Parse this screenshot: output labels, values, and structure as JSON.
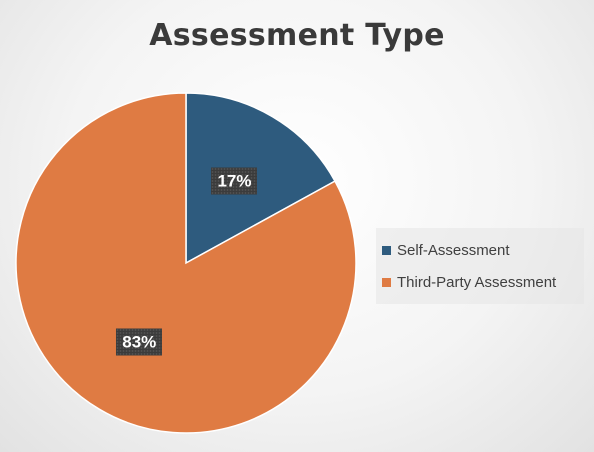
{
  "chart_data": {
    "type": "pie",
    "title": "Assessment Type",
    "categories": [
      "Self-Assessment",
      "Third-Party Assessment"
    ],
    "values": [
      17,
      83
    ],
    "data_labels": [
      "17%",
      "83%"
    ],
    "colors": [
      "#2e5b7e",
      "#df7b43"
    ],
    "legend_position": "right"
  }
}
